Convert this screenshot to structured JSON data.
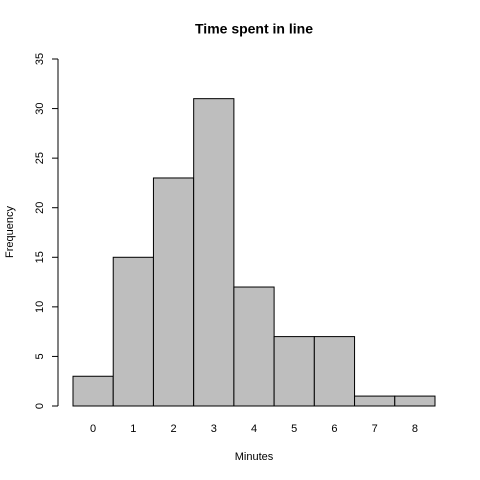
{
  "chart_data": {
    "type": "bar",
    "title": "Time spent in line",
    "x_label": "Minutes",
    "y_label": "Frequency",
    "categories": [
      "0",
      "1",
      "2",
      "3",
      "4",
      "5",
      "6",
      "7",
      "8"
    ],
    "values": [
      3,
      15,
      23,
      31,
      12,
      7,
      7,
      1,
      1
    ],
    "color": "#bebebe",
    "ylim": [
      0,
      35
    ],
    "yticks": [
      0,
      5,
      10,
      15,
      20,
      25,
      30,
      35
    ]
  }
}
